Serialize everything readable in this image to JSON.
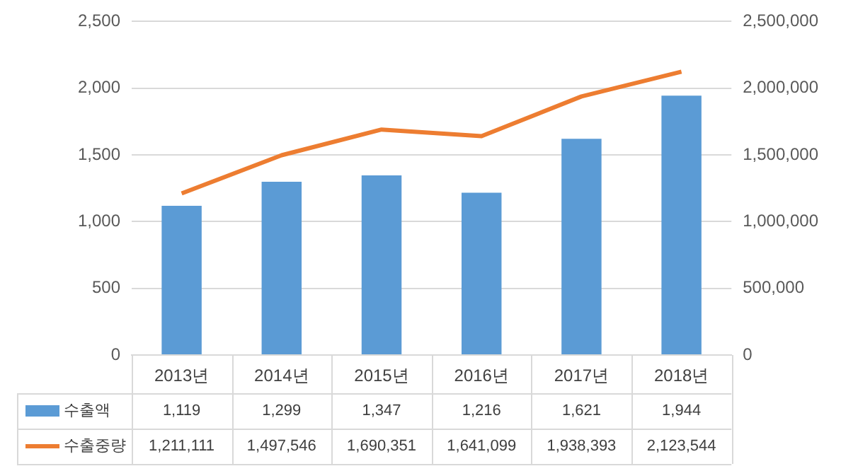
{
  "chart_data": {
    "type": "bar",
    "categories": [
      "2013년",
      "2014년",
      "2015년",
      "2016년",
      "2017년",
      "2018년"
    ],
    "series": [
      {
        "name": "수출액",
        "color": "#5b9bd5",
        "values": [
          1119,
          1299,
          1347,
          1216,
          1621,
          1944
        ],
        "value_labels": [
          "1,119",
          "1,299",
          "1,347",
          "1,216",
          "1,621",
          "1,944"
        ]
      },
      {
        "name": "수출중량",
        "type": "line",
        "axis": "y2",
        "color": "#ed7d31",
        "values": [
          1211111,
          1497546,
          1690351,
          1641099,
          1938393,
          2123544
        ],
        "value_labels": [
          "1,211,111",
          "1,497,546",
          "1,690,351",
          "1,641,099",
          "1,938,393",
          "2,123,544"
        ]
      }
    ],
    "ylim": [
      0,
      2500
    ],
    "yticks": [
      0,
      500,
      {
        "value": 1000,
        "label": "1,000"
      },
      {
        "value": 1500,
        "label": "1,500"
      },
      {
        "value": 2000,
        "label": "2,000"
      },
      {
        "value": 2500,
        "label": "2,500"
      }
    ],
    "y2lim": [
      0,
      2500000
    ],
    "y2ticks": [
      0,
      {
        "value": 500000,
        "label": "500,000"
      },
      {
        "value": 1000000,
        "label": "1,000,000"
      },
      {
        "value": 1500000,
        "label": "1,500,000"
      },
      {
        "value": 2000000,
        "label": "2,000,000"
      },
      {
        "value": 2500000,
        "label": "2,500,000"
      }
    ],
    "grid": "y",
    "legend": "bottom",
    "marker": "none",
    "line_style": "solid"
  }
}
